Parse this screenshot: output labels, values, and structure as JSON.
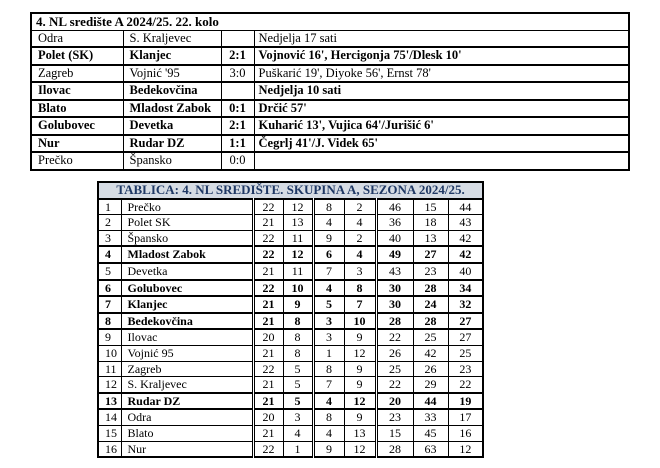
{
  "page": {
    "background": "#ffffff"
  },
  "results_table": {
    "title": "4. NL središte A 2024/25. 22. kolo",
    "rows": [
      {
        "home": "Odra",
        "away": "S. Kraljevec",
        "score": "",
        "details": "Nedjelja 17 sati",
        "bold": false
      },
      {
        "home": "Polet (SK)",
        "away": "Klanjec",
        "score": "2:1",
        "details": "Vojnović 16', Hercigonja 75'/Dlesk 10'",
        "bold": true
      },
      {
        "home": "Zagreb",
        "away": "Vojnić '95",
        "score": "3:0",
        "details": "Puškarić 19', Diyoke 56', Ernst 78'",
        "bold": false
      },
      {
        "home": "Ilovac",
        "away": "Bedekovčina",
        "score": "",
        "details": "Nedjelja 10 sati",
        "bold": true
      },
      {
        "home": "Blato",
        "away": "Mladost Zabok",
        "score": "0:1",
        "details": "Drčić 57'",
        "bold": true
      },
      {
        "home": "Golubovec",
        "away": "Devetka",
        "score": "2:1",
        "details": "Kuharić 13', Vujica 64'/Jurišić 6'",
        "bold": true
      },
      {
        "home": "Nur",
        "away": "Rudar DZ",
        "score": "1:1",
        "details": "Čegrlj 41'/J. Videk 65'",
        "bold": true
      },
      {
        "home": "Prečko",
        "away": "Špansko",
        "score": "0:0",
        "details": "",
        "bold": false
      }
    ]
  },
  "standings_table": {
    "title": "TABLICA: 4. NL SREDIŠTE. SKUPINA A, SEZONA 2024/25.",
    "colors": {
      "header_bg": "#d6dce4",
      "header_text": "#1f3864",
      "border": "#000000"
    },
    "rows": [
      {
        "pos": "1",
        "team": "Prečko",
        "gp": "22",
        "w": "12",
        "d": "8",
        "l": "2",
        "gf": "46",
        "ga": "15",
        "pts": "44",
        "bold": false
      },
      {
        "pos": "2",
        "team": "Polet SK",
        "gp": "21",
        "w": "13",
        "d": "4",
        "l": "4",
        "gf": "36",
        "ga": "18",
        "pts": "43",
        "bold": false
      },
      {
        "pos": "3",
        "team": "Špansko",
        "gp": "22",
        "w": "11",
        "d": "9",
        "l": "2",
        "gf": "40",
        "ga": "13",
        "pts": "42",
        "bold": false
      },
      {
        "pos": "4",
        "team": "Mladost Zabok",
        "gp": "22",
        "w": "12",
        "d": "6",
        "l": "4",
        "gf": "49",
        "ga": "27",
        "pts": "42",
        "bold": true
      },
      {
        "pos": "5",
        "team": "Devetka",
        "gp": "21",
        "w": "11",
        "d": "7",
        "l": "3",
        "gf": "43",
        "ga": "23",
        "pts": "40",
        "bold": false
      },
      {
        "pos": "6",
        "team": "Golubovec",
        "gp": "22",
        "w": "10",
        "d": "4",
        "l": "8",
        "gf": "30",
        "ga": "28",
        "pts": "34",
        "bold": true
      },
      {
        "pos": "7",
        "team": "Klanjec",
        "gp": "21",
        "w": "9",
        "d": "5",
        "l": "7",
        "gf": "30",
        "ga": "24",
        "pts": "32",
        "bold": true
      },
      {
        "pos": "8",
        "team": "Bedekovčina",
        "gp": "21",
        "w": "8",
        "d": "3",
        "l": "10",
        "gf": "28",
        "ga": "28",
        "pts": "27",
        "bold": true
      },
      {
        "pos": "9",
        "team": "Ilovac",
        "gp": "20",
        "w": "8",
        "d": "3",
        "l": "9",
        "gf": "22",
        "ga": "25",
        "pts": "27",
        "bold": false
      },
      {
        "pos": "10",
        "team": "Vojnić 95",
        "gp": "21",
        "w": "8",
        "d": "1",
        "l": "12",
        "gf": "26",
        "ga": "42",
        "pts": "25",
        "bold": false
      },
      {
        "pos": "11",
        "team": "Zagreb",
        "gp": "22",
        "w": "5",
        "d": "8",
        "l": "9",
        "gf": "25",
        "ga": "26",
        "pts": "23",
        "bold": false
      },
      {
        "pos": "12",
        "team": "S. Kraljevec",
        "gp": "21",
        "w": "5",
        "d": "7",
        "l": "9",
        "gf": "22",
        "ga": "29",
        "pts": "22",
        "bold": false
      },
      {
        "pos": "13",
        "team": "Rudar DZ",
        "gp": "21",
        "w": "5",
        "d": "4",
        "l": "12",
        "gf": "20",
        "ga": "44",
        "pts": "19",
        "bold": true
      },
      {
        "pos": "14",
        "team": "Odra",
        "gp": "20",
        "w": "3",
        "d": "8",
        "l": "9",
        "gf": "23",
        "ga": "33",
        "pts": "17",
        "bold": false
      },
      {
        "pos": "15",
        "team": "Blato",
        "gp": "21",
        "w": "4",
        "d": "4",
        "l": "13",
        "gf": "15",
        "ga": "45",
        "pts": "16",
        "bold": false
      },
      {
        "pos": "16",
        "team": "Nur",
        "gp": "22",
        "w": "1",
        "d": "9",
        "l": "12",
        "gf": "28",
        "ga": "63",
        "pts": "12",
        "bold": false
      }
    ]
  }
}
